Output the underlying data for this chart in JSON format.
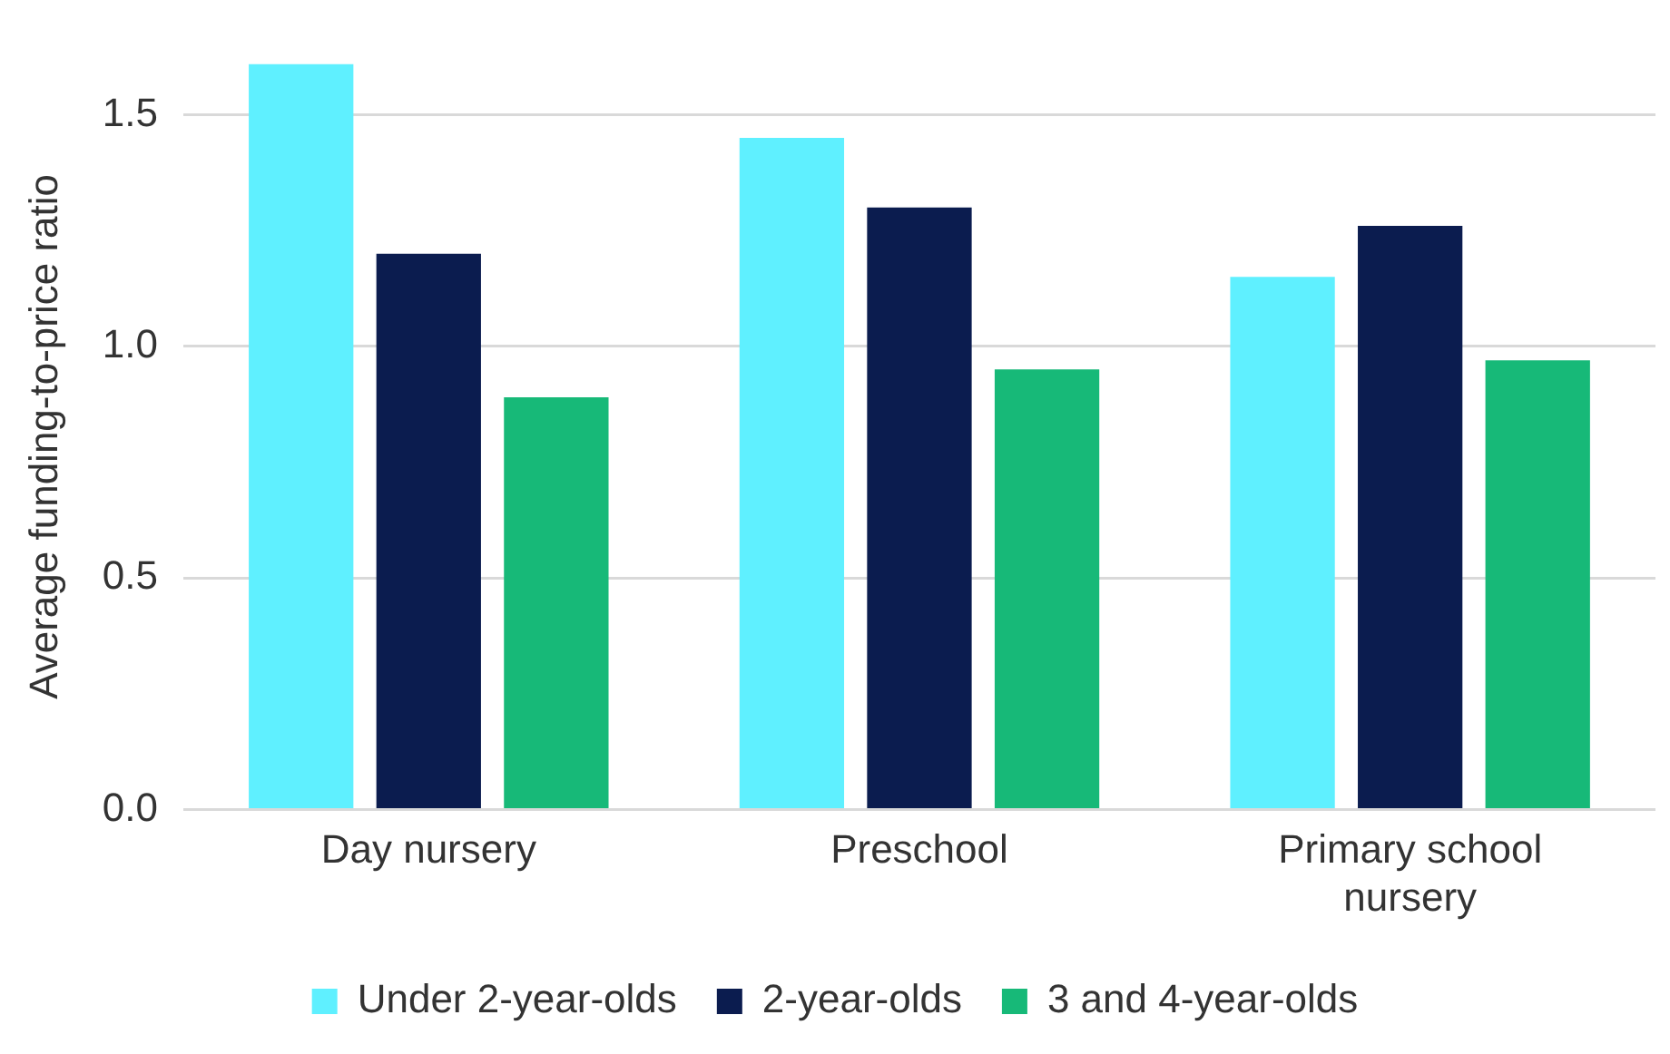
{
  "chart_data": {
    "type": "bar",
    "ylabel": "Average funding-to-price ratio",
    "categories": [
      "Day nursery",
      "Preschool",
      "Primary school nursery"
    ],
    "series": [
      {
        "name": "Under 2-year-olds",
        "color": "#5ff0ff",
        "values": [
          1.61,
          1.45,
          1.15
        ]
      },
      {
        "name": "2-year-olds",
        "color": "#0b1c4f",
        "values": [
          1.2,
          1.3,
          1.26
        ]
      },
      {
        "name": "3 and 4-year-olds",
        "color": "#17b978",
        "values": [
          0.89,
          0.95,
          0.97
        ]
      }
    ],
    "yticks": [
      {
        "value": 0,
        "label": "0.0"
      },
      {
        "value": 0.5,
        "label": "0.5"
      },
      {
        "value": 1,
        "label": "1.0"
      },
      {
        "value": 1.5,
        "label": "1.5"
      }
    ],
    "ylim": [
      0,
      1.61
    ],
    "grid": "y",
    "legend": "bottom"
  }
}
